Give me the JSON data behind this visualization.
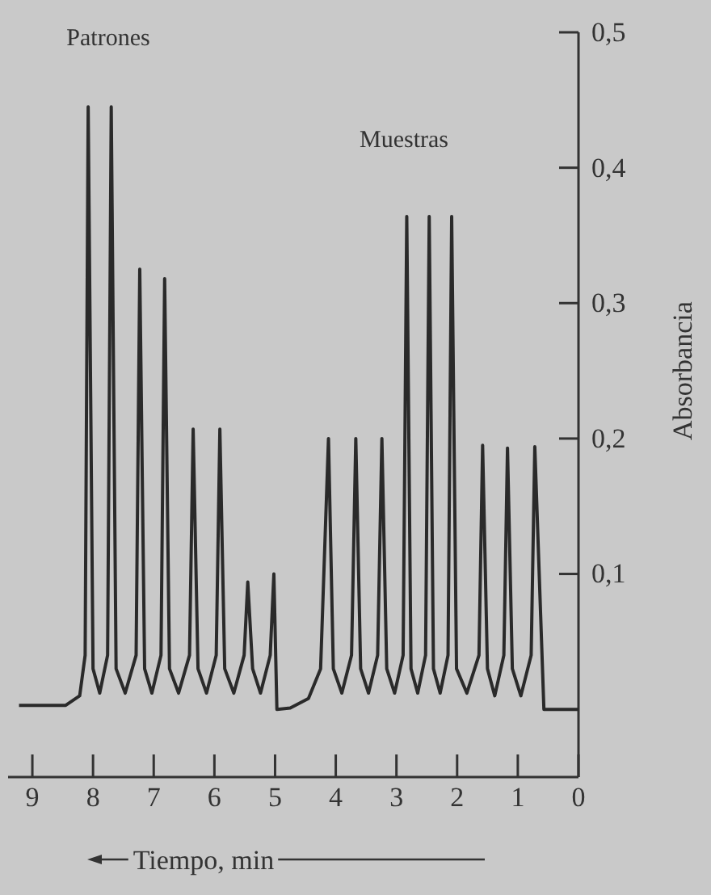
{
  "chart_data": {
    "type": "line",
    "xlabel": "Tiempo, min",
    "ylabel": "Absorbancia",
    "x": [
      9.22,
      8.45,
      8.22,
      8.13,
      8.08,
      8.0,
      7.89,
      7.76,
      7.7,
      7.62,
      7.47,
      7.29,
      7.23,
      7.15,
      7.03,
      6.88,
      6.82,
      6.74,
      6.59,
      6.41,
      6.35,
      6.27,
      6.13,
      5.97,
      5.91,
      5.83,
      5.68,
      5.51,
      5.45,
      5.37,
      5.24,
      5.08,
      5.02,
      4.97,
      4.75,
      4.45,
      4.25,
      4.12,
      4.04,
      3.9,
      3.74,
      3.67,
      3.59,
      3.46,
      3.31,
      3.24,
      3.16,
      3.03,
      2.89,
      2.83,
      2.76,
      2.65,
      2.52,
      2.46,
      2.39,
      2.28,
      2.15,
      2.09,
      2.01,
      1.84,
      1.64,
      1.58,
      1.5,
      1.38,
      1.23,
      1.17,
      1.09,
      0.95,
      0.78,
      0.72,
      0.57,
      0
    ],
    "values": [
      0.003,
      0.003,
      0.01,
      0.04,
      0.445,
      0.03,
      0.012,
      0.04,
      0.445,
      0.03,
      0.012,
      0.04,
      0.325,
      0.03,
      0.012,
      0.04,
      0.318,
      0.03,
      0.012,
      0.04,
      0.207,
      0.03,
      0.012,
      0.04,
      0.207,
      0.03,
      0.012,
      0.04,
      0.094,
      0.03,
      0.012,
      0.04,
      0.1,
      0,
      0.001,
      0.008,
      0.03,
      0.2,
      0.03,
      0.012,
      0.04,
      0.2,
      0.03,
      0.012,
      0.04,
      0.2,
      0.03,
      0.012,
      0.04,
      0.364,
      0.03,
      0.012,
      0.04,
      0.364,
      0.03,
      0.012,
      0.04,
      0.364,
      0.03,
      0.012,
      0.04,
      0.195,
      0.03,
      0.01,
      0.04,
      0.193,
      0.03,
      0.01,
      0.04,
      0.194,
      0,
      0
    ],
    "color": "#2a2a2a",
    "xlim": [
      9.4,
      0
    ],
    "xticks": [
      9,
      8,
      7,
      6,
      5,
      4,
      3,
      2,
      1,
      0
    ],
    "ylim": [
      -0.05,
      0.5
    ],
    "yticks": [
      {
        "value": 0.1,
        "label": "0,1"
      },
      {
        "value": 0.2,
        "label": "0,2"
      },
      {
        "value": 0.3,
        "label": "0,3"
      },
      {
        "value": 0.4,
        "label": "0,4"
      },
      {
        "value": 0.5,
        "label": "0,5"
      }
    ],
    "annotations": [
      "Patrones",
      "Muestras"
    ]
  }
}
